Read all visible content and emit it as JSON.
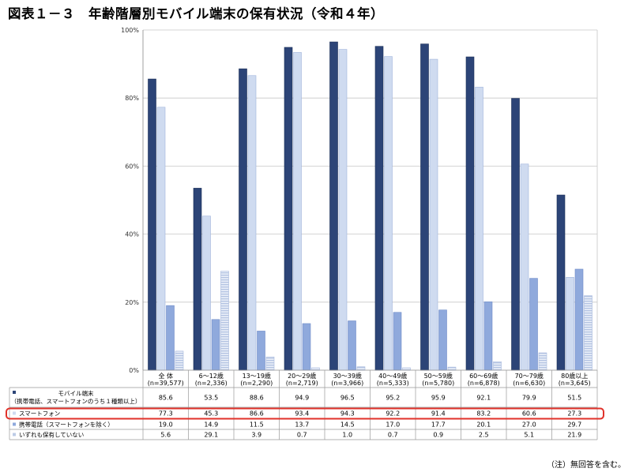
{
  "title": "図表１－３　年齢階層別モバイル端末の保有状況（令和４年）",
  "note": "（注）無回答を含む。",
  "colors": {
    "mobile": "#2c4477",
    "smartphone": "#cfdbf0",
    "feature_phone": "#8fa9dc",
    "none": "#bccbe6",
    "grid": "#c7c7c7",
    "highlight": "#e0322a"
  },
  "chart_data": {
    "type": "bar",
    "ylim": [
      0,
      100
    ],
    "yticks": [
      "0%",
      "20%",
      "40%",
      "60%",
      "80%",
      "100%"
    ],
    "categories": [
      {
        "label": "全 体",
        "n": "(n=39,577)"
      },
      {
        "label": "6～12歳",
        "n": "(n=2,336)"
      },
      {
        "label": "13～19歳",
        "n": "(n=2,290)"
      },
      {
        "label": "20～29歳",
        "n": "(n=2,719)"
      },
      {
        "label": "30～39歳",
        "n": "(n=3,966)"
      },
      {
        "label": "40～49歳",
        "n": "(n=5,333)"
      },
      {
        "label": "50～59歳",
        "n": "(n=5,780)"
      },
      {
        "label": "60～69歳",
        "n": "(n=6,878)"
      },
      {
        "label": "70～79歳",
        "n": "(n=6,630)"
      },
      {
        "label": "80歳以上",
        "n": "(n=3,645)"
      }
    ],
    "series": [
      {
        "name": "モバイル端末",
        "name2": "（携帯電話、スマートフォンのうち１種類以上）",
        "values": [
          85.6,
          53.5,
          88.6,
          94.9,
          96.5,
          95.2,
          95.9,
          92.1,
          79.9,
          51.5
        ],
        "labels": [
          "85.6",
          "53.5",
          "88.6",
          "94.9",
          "96.5",
          "95.2",
          "95.9",
          "92.1",
          "79.9",
          "51.5"
        ]
      },
      {
        "name": "スマートフォン",
        "values": [
          77.3,
          45.3,
          86.6,
          93.4,
          94.3,
          92.2,
          91.4,
          83.2,
          60.6,
          27.3
        ],
        "labels": [
          "77.3",
          "45.3",
          "86.6",
          "93.4",
          "94.3",
          "92.2",
          "91.4",
          "83.2",
          "60.6",
          "27.3"
        ]
      },
      {
        "name": "携帯電話（スマートフォンを除く）",
        "values": [
          19.0,
          14.9,
          11.5,
          13.7,
          14.5,
          17.0,
          17.7,
          20.1,
          27.0,
          29.7
        ],
        "labels": [
          "19.0",
          "14.9",
          "11.5",
          "13.7",
          "14.5",
          "17.0",
          "17.7",
          "20.1",
          "27.0",
          "29.7"
        ]
      },
      {
        "name": "いずれも保有していない",
        "values": [
          5.6,
          29.1,
          3.9,
          0.7,
          1.0,
          0.7,
          0.9,
          2.5,
          5.1,
          21.9
        ],
        "labels": [
          "5.6",
          "29.1",
          "3.9",
          "0.7",
          "1.0",
          "0.7",
          "0.9",
          "2.5",
          "5.1",
          "21.9"
        ]
      }
    ],
    "highlighted_series": 1
  }
}
